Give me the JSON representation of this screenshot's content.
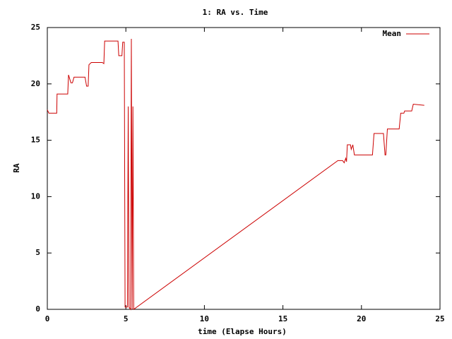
{
  "chart_data": {
    "type": "line",
    "title": "1: RA vs. Time",
    "x_label": "time (Elapse Hours)",
    "y_label": "RA",
    "xlim": [
      0,
      25
    ],
    "ylim": [
      0,
      25
    ],
    "xticks": [
      0,
      5,
      10,
      15,
      20,
      25
    ],
    "yticks": [
      0,
      5,
      10,
      15,
      20,
      25
    ],
    "grid": false,
    "legend": "upper right",
    "x": [
      0,
      0.1,
      0.6,
      0.62,
      1.3,
      1.35,
      1.5,
      1.6,
      1.7,
      2.4,
      2.5,
      2.6,
      2.65,
      2.8,
      3.5,
      3.6,
      3.65,
      4.5,
      4.55,
      4.75,
      4.8,
      4.9,
      4.95,
      5.1,
      5.15,
      5.2,
      5.3,
      5.35,
      5.4,
      5.45,
      5.5,
      18.5,
      18.8,
      18.9,
      19.0,
      19.05,
      19.1,
      19.3,
      19.35,
      19.45,
      19.55,
      20.7,
      20.8,
      21.4,
      21.5,
      21.55,
      21.65,
      22.4,
      22.5,
      22.7,
      22.75,
      23.2,
      23.3,
      24.0
    ],
    "series": [
      {
        "name": "Mean",
        "color": "#cc0000",
        "values": [
          17.7,
          17.4,
          17.4,
          19.1,
          19.1,
          20.8,
          20.1,
          20.1,
          20.6,
          20.6,
          19.8,
          19.8,
          21.7,
          21.9,
          21.9,
          21.8,
          23.8,
          23.8,
          22.5,
          22.5,
          23.7,
          23.7,
          0.2,
          0.2,
          18,
          0.2,
          0,
          24,
          0,
          18,
          0,
          13.2,
          13.2,
          13.0,
          13.4,
          13.1,
          14.6,
          14.6,
          14.2,
          14.6,
          13.7,
          13.7,
          15.6,
          15.6,
          13.7,
          13.7,
          16.0,
          16.0,
          17.4,
          17.4,
          17.6,
          17.6,
          18.2,
          18.1
        ]
      }
    ]
  }
}
